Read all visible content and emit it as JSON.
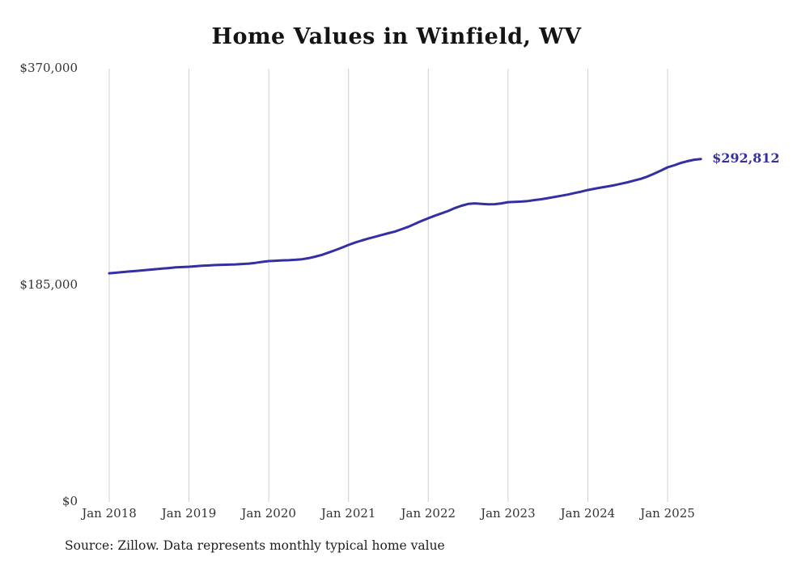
{
  "title": "Home Values in Winfield, WV",
  "source_note": "Source: Zillow. Data represents monthly typical home value",
  "end_label": "$292,812",
  "colors": {
    "line": "#3430a3",
    "grid": "#cfcfcf",
    "axis_text": "#333333",
    "title_text": "#141414"
  },
  "y_axis": {
    "tick_labels": [
      "$0",
      "$185,000",
      "$370,000"
    ],
    "tick_values": [
      0,
      185000,
      370000
    ]
  },
  "chart_data": {
    "type": "line",
    "title": "Home Values in Winfield, WV",
    "series_name": "Typical home value",
    "ylim": [
      0,
      370000
    ],
    "grid": "vertical-only",
    "final_value": 292812,
    "x_tick_labels": [
      "Jan 2018",
      "Jan 2019",
      "Jan 2020",
      "Jan 2021",
      "Jan 2022",
      "Jan 2023",
      "Jan 2024",
      "Jan 2025"
    ],
    "x_tick_indices": [
      0,
      12,
      24,
      36,
      48,
      60,
      72,
      84
    ],
    "x": [
      "2018-01",
      "2018-02",
      "2018-03",
      "2018-04",
      "2018-05",
      "2018-06",
      "2018-07",
      "2018-08",
      "2018-09",
      "2018-10",
      "2018-11",
      "2018-12",
      "2019-01",
      "2019-02",
      "2019-03",
      "2019-04",
      "2019-05",
      "2019-06",
      "2019-07",
      "2019-08",
      "2019-09",
      "2019-10",
      "2019-11",
      "2019-12",
      "2020-01",
      "2020-02",
      "2020-03",
      "2020-04",
      "2020-05",
      "2020-06",
      "2020-07",
      "2020-08",
      "2020-09",
      "2020-10",
      "2020-11",
      "2020-12",
      "2021-01",
      "2021-02",
      "2021-03",
      "2021-04",
      "2021-05",
      "2021-06",
      "2021-07",
      "2021-08",
      "2021-09",
      "2021-10",
      "2021-11",
      "2021-12",
      "2022-01",
      "2022-02",
      "2022-03",
      "2022-04",
      "2022-05",
      "2022-06",
      "2022-07",
      "2022-08",
      "2022-09",
      "2022-10",
      "2022-11",
      "2022-12",
      "2023-01",
      "2023-02",
      "2023-03",
      "2023-04",
      "2023-05",
      "2023-06",
      "2023-07",
      "2023-08",
      "2023-09",
      "2023-10",
      "2023-11",
      "2023-12",
      "2024-01",
      "2024-02",
      "2024-03",
      "2024-04",
      "2024-05",
      "2024-06",
      "2024-07",
      "2024-08",
      "2024-09",
      "2024-10",
      "2024-11",
      "2024-12",
      "2025-01",
      "2025-02",
      "2025-03",
      "2025-04",
      "2025-05",
      "2025-06"
    ],
    "values": [
      195300,
      195800,
      196300,
      196800,
      197300,
      197800,
      198300,
      198800,
      199300,
      199800,
      200300,
      200600,
      200900,
      201300,
      201700,
      202000,
      202300,
      202500,
      202700,
      202900,
      203200,
      203600,
      204200,
      205000,
      205700,
      206000,
      206300,
      206500,
      206800,
      207300,
      208200,
      209500,
      211000,
      213000,
      215000,
      217200,
      219500,
      221500,
      223300,
      225000,
      226500,
      228000,
      229500,
      231000,
      233000,
      235000,
      237500,
      240000,
      242300,
      244500,
      246500,
      248500,
      251000,
      253000,
      254500,
      255000,
      254600,
      254200,
      254300,
      255000,
      256000,
      256300,
      256500,
      257000,
      257800,
      258500,
      259500,
      260500,
      261500,
      262500,
      263800,
      265000,
      266400,
      267500,
      268500,
      269500,
      270500,
      271800,
      273000,
      274500,
      276000,
      278000,
      280500,
      283000,
      285800,
      287500,
      289500,
      291000,
      292300,
      292812
    ]
  }
}
